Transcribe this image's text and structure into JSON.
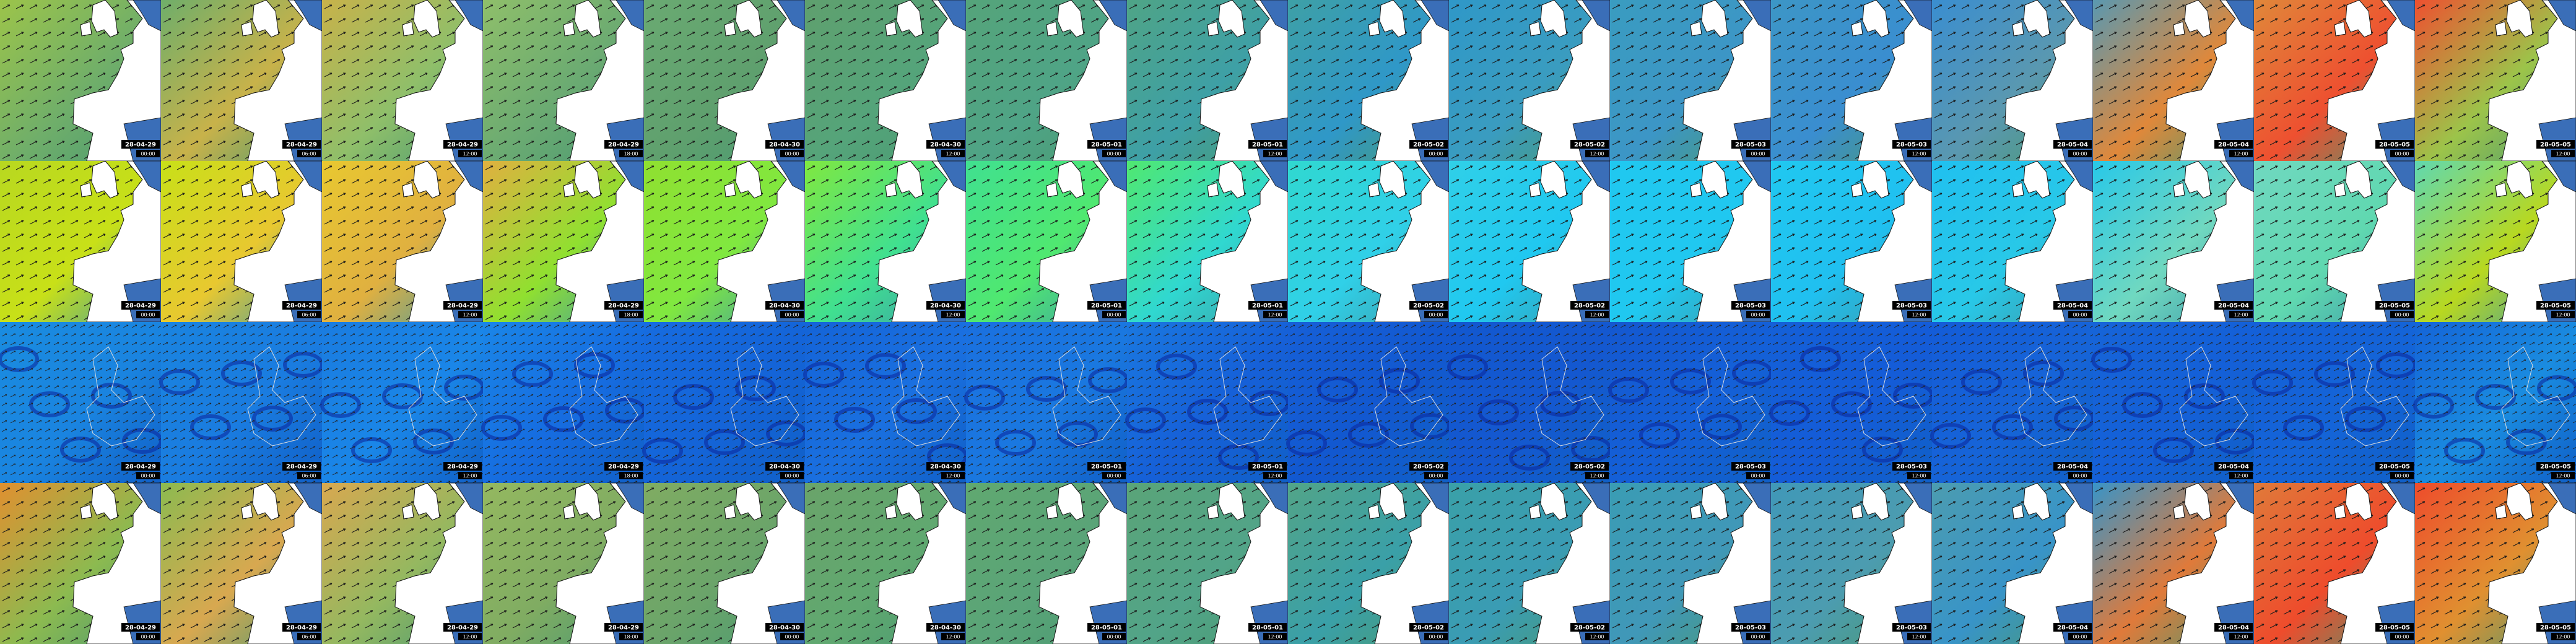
{
  "rows": [
    {
      "tiles": [
        {
          "date": "28-04-29",
          "time": "00:00"
        },
        {
          "date": "28-04-29",
          "time": "06:00"
        },
        {
          "date": "28-04-29",
          "time": "12:00"
        },
        {
          "date": "28-04-29",
          "time": "18:00"
        },
        {
          "date": "28-04-30",
          "time": "00:00"
        },
        {
          "date": "28-04-30",
          "time": "12:00"
        },
        {
          "date": "28-05-01",
          "time": "00:00"
        },
        {
          "date": "28-05-01",
          "time": "12:00"
        },
        {
          "date": "28-05-02",
          "time": "00:00"
        },
        {
          "date": "28-05-02",
          "time": "12:00"
        },
        {
          "date": "28-05-03",
          "time": "00:00"
        },
        {
          "date": "28-05-03",
          "time": "12:00"
        },
        {
          "date": "28-05-04",
          "time": "00:00"
        },
        {
          "date": "28-05-04",
          "time": "12:00"
        },
        {
          "date": "28-05-05",
          "time": "00:00"
        },
        {
          "date": "28-05-05",
          "time": "12:00"
        }
      ]
    },
    {
      "tiles": [
        {
          "date": "28-04-29",
          "time": "00:00"
        },
        {
          "date": "28-04-29",
          "time": "06:00"
        },
        {
          "date": "28-04-29",
          "time": "12:00"
        },
        {
          "date": "28-04-29",
          "time": "18:00"
        },
        {
          "date": "28-04-30",
          "time": "00:00"
        },
        {
          "date": "28-04-30",
          "time": "12:00"
        },
        {
          "date": "28-05-01",
          "time": "00:00"
        },
        {
          "date": "28-05-01",
          "time": "12:00"
        },
        {
          "date": "28-05-02",
          "time": "00:00"
        },
        {
          "date": "28-05-02",
          "time": "12:00"
        },
        {
          "date": "28-05-03",
          "time": "00:00"
        },
        {
          "date": "28-05-03",
          "time": "12:00"
        },
        {
          "date": "28-05-04",
          "time": "00:00"
        },
        {
          "date": "28-05-04",
          "time": "12:00"
        },
        {
          "date": "28-05-05",
          "time": "00:00"
        },
        {
          "date": "28-05-05",
          "time": "12:00"
        }
      ]
    },
    {
      "tiles": [
        {
          "date": "28-04-29",
          "time": "00:00"
        },
        {
          "date": "28-04-29",
          "time": "06:00"
        },
        {
          "date": "28-04-29",
          "time": "12:00"
        },
        {
          "date": "28-04-29",
          "time": "18:00"
        },
        {
          "date": "28-04-30",
          "time": "00:00"
        },
        {
          "date": "28-04-30",
          "time": "12:00"
        },
        {
          "date": "28-05-01",
          "time": "00:00"
        },
        {
          "date": "28-05-01",
          "time": "12:00"
        },
        {
          "date": "28-05-02",
          "time": "00:00"
        },
        {
          "date": "28-05-02",
          "time": "12:00"
        },
        {
          "date": "28-05-03",
          "time": "00:00"
        },
        {
          "date": "28-05-03",
          "time": "12:00"
        },
        {
          "date": "28-05-04",
          "time": "00:00"
        },
        {
          "date": "28-05-04",
          "time": "12:00"
        },
        {
          "date": "28-05-05",
          "time": "00:00"
        },
        {
          "date": "28-05-05",
          "time": "12:00"
        }
      ]
    },
    {
      "tiles": [
        {
          "date": "28-04-29",
          "time": "00:00"
        },
        {
          "date": "28-04-29",
          "time": "06:00"
        },
        {
          "date": "28-04-29",
          "time": "12:00"
        },
        {
          "date": "28-04-29",
          "time": "18:00"
        },
        {
          "date": "28-04-30",
          "time": "00:00"
        },
        {
          "date": "28-04-30",
          "time": "12:00"
        },
        {
          "date": "28-05-01",
          "time": "00:00"
        },
        {
          "date": "28-05-01",
          "time": "12:00"
        },
        {
          "date": "28-05-02",
          "time": "00:00"
        },
        {
          "date": "28-05-02",
          "time": "12:00"
        },
        {
          "date": "28-05-03",
          "time": "00:00"
        },
        {
          "date": "28-05-03",
          "time": "12:00"
        },
        {
          "date": "28-05-04",
          "time": "00:00"
        },
        {
          "date": "28-05-04",
          "time": "12:00"
        },
        {
          "date": "28-05-05",
          "time": "00:00"
        },
        {
          "date": "28-05-05",
          "time": "12:00"
        }
      ]
    }
  ]
}
